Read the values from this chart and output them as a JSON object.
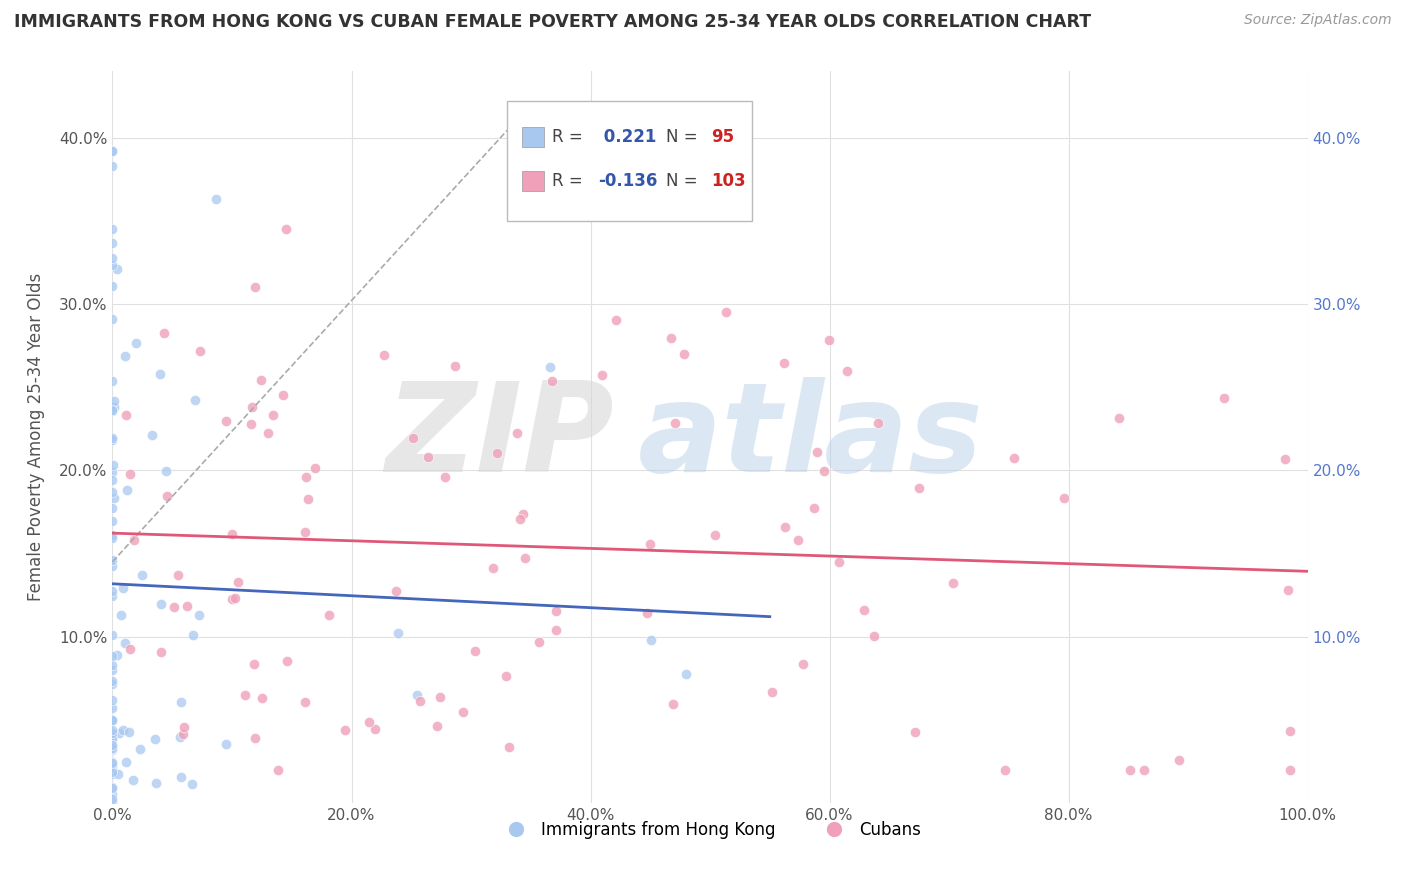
{
  "title": "IMMIGRANTS FROM HONG KONG VS CUBAN FEMALE POVERTY AMONG 25-34 YEAR OLDS CORRELATION CHART",
  "source": "Source: ZipAtlas.com",
  "ylabel": "Female Poverty Among 25-34 Year Olds",
  "xlim": [
    0,
    1.0
  ],
  "ylim": [
    0,
    0.44
  ],
  "xtick_labels": [
    "0.0%",
    "20.0%",
    "40.0%",
    "60.0%",
    "80.0%",
    "100.0%"
  ],
  "xtick_values": [
    0.0,
    0.2,
    0.4,
    0.6,
    0.8,
    1.0
  ],
  "ytick_labels": [
    "10.0%",
    "20.0%",
    "30.0%",
    "40.0%"
  ],
  "ytick_values": [
    0.1,
    0.2,
    0.3,
    0.4
  ],
  "legend1_r": " 0.221",
  "legend1_n": "95",
  "legend2_r": "-0.136",
  "legend2_n": "103",
  "hk_color": "#a8c8f0",
  "cuban_color": "#f0a0b8",
  "hk_trend_color": "#4466bb",
  "cuban_trend_color": "#e05878",
  "watermark_zip": "ZIP",
  "watermark_atlas": "atlas",
  "background_color": "#ffffff",
  "grid_color": "#e0e0e0",
  "title_color": "#333333",
  "source_color": "#999999",
  "ylabel_color": "#555555",
  "tick_color_left": "#555555",
  "tick_color_right": "#5577cc",
  "legend_r_color": "#3355aa",
  "legend_n_color": "#cc2222"
}
